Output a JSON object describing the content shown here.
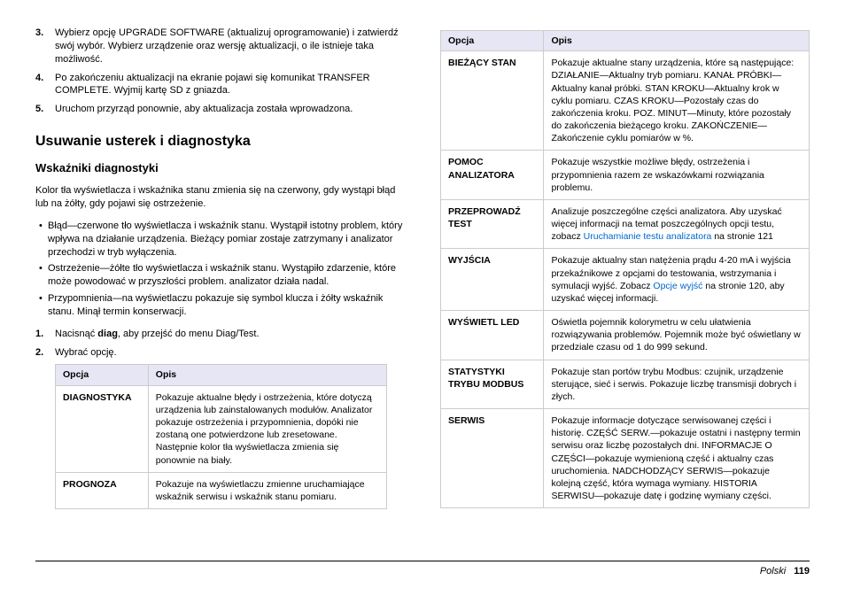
{
  "left": {
    "steps": [
      {
        "n": "3.",
        "text": "Wybierz opcję UPGRADE SOFTWARE (aktualizuj oprogramowanie) i zatwierdź swój wybór. Wybierz urządzenie oraz wersję aktualizacji, o ile istnieje taka możliwość."
      },
      {
        "n": "4.",
        "text": "Po zakończeniu aktualizacji na ekranie pojawi się komunikat TRANSFER COMPLETE. Wyjmij kartę SD z gniazda."
      },
      {
        "n": "5.",
        "text": "Uruchom przyrząd ponownie, aby aktualizacja została wprowadzona."
      }
    ],
    "h2": "Usuwanie usterek i diagnostyka",
    "h3": "Wskaźniki diagnostyki",
    "para": "Kolor tła wyświetlacza i wskaźnika stanu zmienia się na czerwony, gdy wystąpi błąd lub na żółty, gdy pojawi się ostrzeżenie.",
    "bullets": [
      "Błąd—czerwone tło wyświetlacza i wskaźnik stanu. Wystąpił istotny problem, który wpływa na działanie urządzenia. Bieżący pomiar zostaje zatrzymany i analizator przechodzi w tryb wyłączenia.",
      "Ostrzeżenie—żółte tło wyświetlacza i wskaźnik stanu. Wystąpiło zdarzenie, które może powodować w przyszłości problem. analizator działa nadal.",
      "Przypomnienia—na wyświetlaczu pokazuje się symbol klucza i żółty wskaźnik stanu. Minął termin konserwacji."
    ],
    "steps2": [
      {
        "n": "1.",
        "pre": "Nacisnąć ",
        "bold": "diag",
        "post": ", aby przejść do menu Diag/Test."
      },
      {
        "n": "2.",
        "pre": "Wybrać opcję.",
        "bold": "",
        "post": ""
      }
    ],
    "table": {
      "headers": [
        "Opcja",
        "Opis"
      ],
      "rows": [
        {
          "opt": "DIAGNOSTYKA",
          "desc": "Pokazuje aktualne błędy i ostrzeżenia, które dotyczą urządzenia lub zainstalowanych modułów. Analizator pokazuje ostrzeżenia i przypomnienia, dopóki nie zostaną one potwierdzone lub zresetowane. Następnie kolor tła wyświetlacza zmienia się ponownie na biały."
        },
        {
          "opt": "PROGNOZA",
          "desc": "Pokazuje na wyświetlaczu zmienne uruchamiające wskaźnik serwisu i wskaźnik stanu pomiaru."
        }
      ]
    }
  },
  "right": {
    "table": {
      "headers": [
        "Opcja",
        "Opis"
      ],
      "rows": [
        {
          "opt": "BIEŻĄCY STAN",
          "desc": "Pokazuje aktualne stany urządzenia, które są następujące: DZIAŁANIE—Aktualny tryb pomiaru. KANAŁ PRÓBKI—Aktualny kanał próbki. STAN KROKU—Aktualny krok w cyklu pomiaru. CZAS KROKU—Pozostały czas do zakończenia kroku. POZ. MINUT—Minuty, które pozostały do zakończenia bieżącego kroku. ZAKOŃCZENIE—Zakończenie cyklu pomiarów w %."
        },
        {
          "opt": "POMOC ANALIZATORA",
          "desc": "Pokazuje wszystkie możliwe błędy, ostrzeżenia i przypomnienia razem ze wskazówkami rozwiązania problemu."
        },
        {
          "opt": "PRZEPROWADŹ TEST",
          "desc_pre": "Analizuje poszczególne części analizatora. Aby uzyskać więcej informacji na temat poszczególnych opcji testu, zobacz ",
          "link": "Uruchamianie testu analizatora",
          "desc_post": " na stronie 121"
        },
        {
          "opt": "WYJŚCIA",
          "desc_pre": "Pokazuje aktualny stan natężenia prądu 4-20 mA i wyjścia przekaźnikowe z opcjami do testowania, wstrzymania i symulacji wyjść. Zobacz ",
          "link": "Opcje wyjść",
          "desc_post": " na stronie 120, aby uzyskać więcej informacji."
        },
        {
          "opt": "WYŚWIETL LED",
          "desc": "Oświetla pojemnik kolorymetru w celu ułatwienia rozwiązywania problemów. Pojemnik może być oświetlany w przedziale czasu od 1 do 999 sekund."
        },
        {
          "opt": "STATYSTYKI TRYBU MODBUS",
          "desc": "Pokazuje stan portów trybu Modbus: czujnik, urządzenie sterujące, sieć i serwis. Pokazuje liczbę transmisji dobrych i złych."
        },
        {
          "opt": "SERWIS",
          "desc": "Pokazuje informacje dotyczące serwisowanej części i historię. CZĘŚĆ SERW.—pokazuje ostatni i następny termin serwisu oraz liczbę pozostałych dni. INFORMACJE O CZĘŚCI—pokazuje wymienioną część i aktualny czas uruchomienia. NADCHODZĄCY SERWIS—pokazuje kolejną część, która wymaga wymiany. HISTORIA SERWISU—pokazuje datę i godzinę wymiany części."
        }
      ]
    }
  },
  "footer": {
    "lang": "Polski",
    "page": "119"
  }
}
